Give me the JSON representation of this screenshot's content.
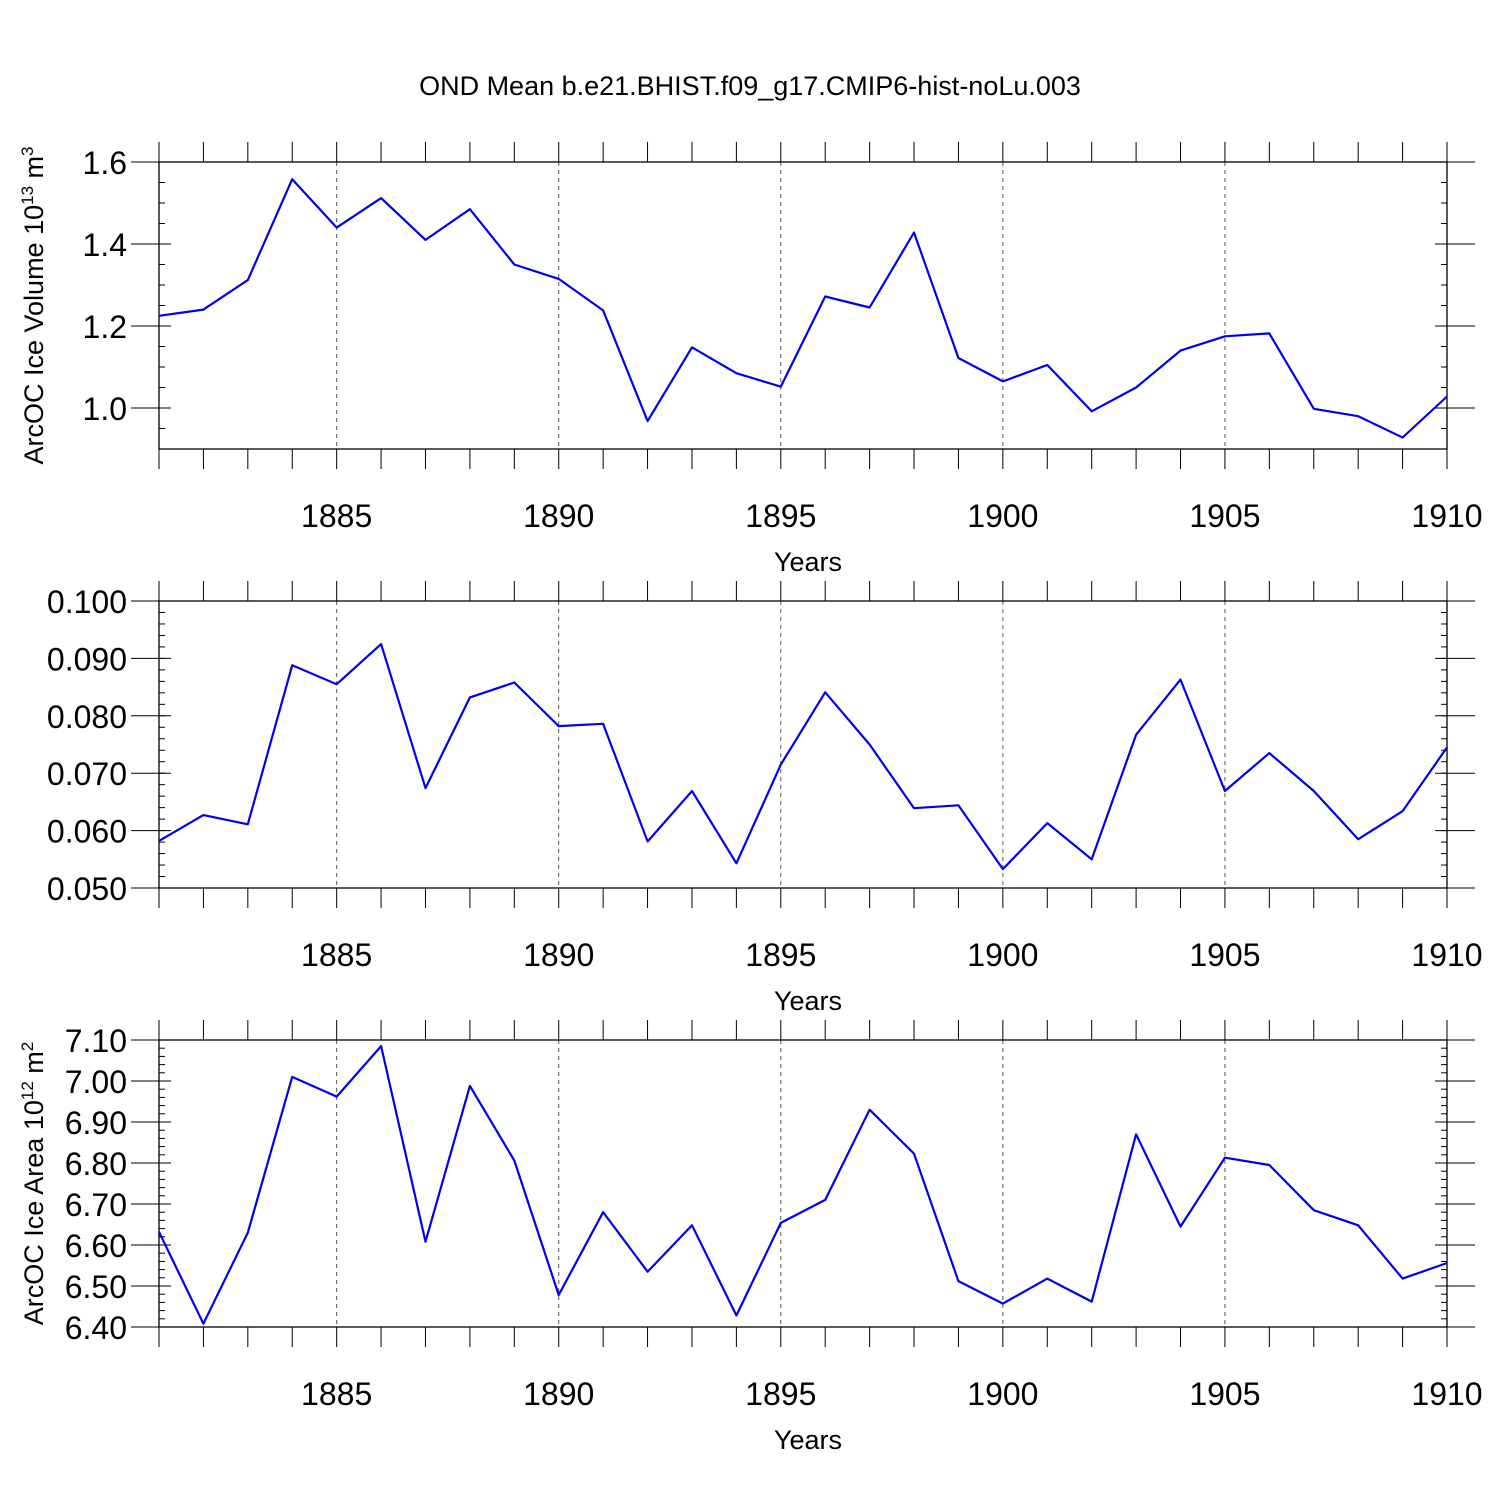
{
  "title": "OND Mean b.e21.BHIST.f09_g17.CMIP6-hist-noLu.003",
  "colors": {
    "series": "#0000ee",
    "axis": "#000000",
    "grid": "#555555"
  },
  "chart_data": [
    {
      "type": "line",
      "xlabel": "Years",
      "ylabel": "ArcOC Ice Volume 10",
      "ylabel_exp": "13",
      "ylabel_unit": " m",
      "ylabel_unit_exp": "3",
      "xlim": [
        1881,
        1910
      ],
      "ylim": [
        0.9,
        1.6
      ],
      "x_ticks": [
        "1885",
        "1890",
        "1895",
        "1900",
        "1905",
        "1910"
      ],
      "y_ticks": [
        "1.0",
        "1.2",
        "1.4",
        "1.6"
      ],
      "y_tick_values": [
        1.0,
        1.2,
        1.4,
        1.6
      ],
      "y_minor_step": 0.05,
      "grid": "x-major-dashed",
      "x": [
        1881,
        1882,
        1883,
        1884,
        1885,
        1886,
        1887,
        1888,
        1889,
        1890,
        1891,
        1892,
        1893,
        1894,
        1895,
        1896,
        1897,
        1898,
        1899,
        1900,
        1901,
        1902,
        1903,
        1904,
        1905,
        1906,
        1907,
        1908,
        1909,
        1910
      ],
      "series": [
        {
          "values": [
            1.225,
            1.24,
            1.312,
            1.558,
            1.44,
            1.512,
            1.41,
            1.485,
            1.35,
            1.315,
            1.238,
            0.968,
            1.148,
            1.085,
            1.052,
            1.272,
            1.245,
            1.428,
            1.122,
            1.065,
            1.105,
            0.992,
            1.05,
            1.14,
            1.175,
            1.182,
            0.998,
            0.98,
            0.928,
            1.028
          ]
        }
      ]
    },
    {
      "type": "line",
      "xlabel": "Years",
      "ylabel": "",
      "xlim": [
        1881,
        1910
      ],
      "ylim": [
        0.05,
        0.1
      ],
      "x_ticks": [
        "1885",
        "1890",
        "1895",
        "1900",
        "1905",
        "1910"
      ],
      "y_ticks": [
        "0.050",
        "0.060",
        "0.070",
        "0.080",
        "0.090",
        "0.100"
      ],
      "y_tick_values": [
        0.05,
        0.06,
        0.07,
        0.08,
        0.09,
        0.1
      ],
      "y_minor_step": 0.002,
      "grid": "x-major-dashed",
      "x": [
        1881,
        1882,
        1883,
        1884,
        1885,
        1886,
        1887,
        1888,
        1889,
        1890,
        1891,
        1892,
        1893,
        1894,
        1895,
        1896,
        1897,
        1898,
        1899,
        1900,
        1901,
        1902,
        1903,
        1904,
        1905,
        1906,
        1907,
        1908,
        1909,
        1910
      ],
      "series": [
        {
          "values": [
            0.0582,
            0.0627,
            0.0611,
            0.0888,
            0.0855,
            0.0925,
            0.0674,
            0.0832,
            0.0858,
            0.0782,
            0.0786,
            0.0581,
            0.0669,
            0.0543,
            0.0715,
            0.0841,
            0.075,
            0.0639,
            0.0644,
            0.0533,
            0.0613,
            0.055,
            0.0767,
            0.0863,
            0.0669,
            0.0735,
            0.0669,
            0.0585,
            0.0634,
            0.0745
          ]
        }
      ]
    },
    {
      "type": "line",
      "xlabel": "Years",
      "ylabel": "ArcOC Ice Area 10",
      "ylabel_exp": "12",
      "ylabel_unit": " m",
      "ylabel_unit_exp": "2",
      "xlim": [
        1881,
        1910
      ],
      "ylim": [
        6.4,
        7.1
      ],
      "x_ticks": [
        "1885",
        "1890",
        "1895",
        "1900",
        "1905",
        "1910"
      ],
      "y_ticks": [
        "6.40",
        "6.50",
        "6.60",
        "6.70",
        "6.80",
        "6.90",
        "7.00",
        "7.10"
      ],
      "y_tick_values": [
        6.4,
        6.5,
        6.6,
        6.7,
        6.8,
        6.9,
        7.0,
        7.1
      ],
      "y_minor_step": 0.02,
      "grid": "x-major-dashed",
      "x": [
        1881,
        1882,
        1883,
        1884,
        1885,
        1886,
        1887,
        1888,
        1889,
        1890,
        1891,
        1892,
        1893,
        1894,
        1895,
        1896,
        1897,
        1898,
        1899,
        1900,
        1901,
        1902,
        1903,
        1904,
        1905,
        1906,
        1907,
        1908,
        1909,
        1910
      ],
      "series": [
        {
          "values": [
            6.632,
            6.408,
            6.63,
            7.01,
            6.962,
            7.085,
            6.608,
            6.988,
            6.806,
            6.478,
            6.68,
            6.535,
            6.648,
            6.428,
            6.654,
            6.71,
            6.93,
            6.823,
            6.512,
            6.457,
            6.518,
            6.462,
            6.87,
            6.645,
            6.813,
            6.795,
            6.685,
            6.648,
            6.518,
            6.556
          ]
        }
      ]
    }
  ]
}
